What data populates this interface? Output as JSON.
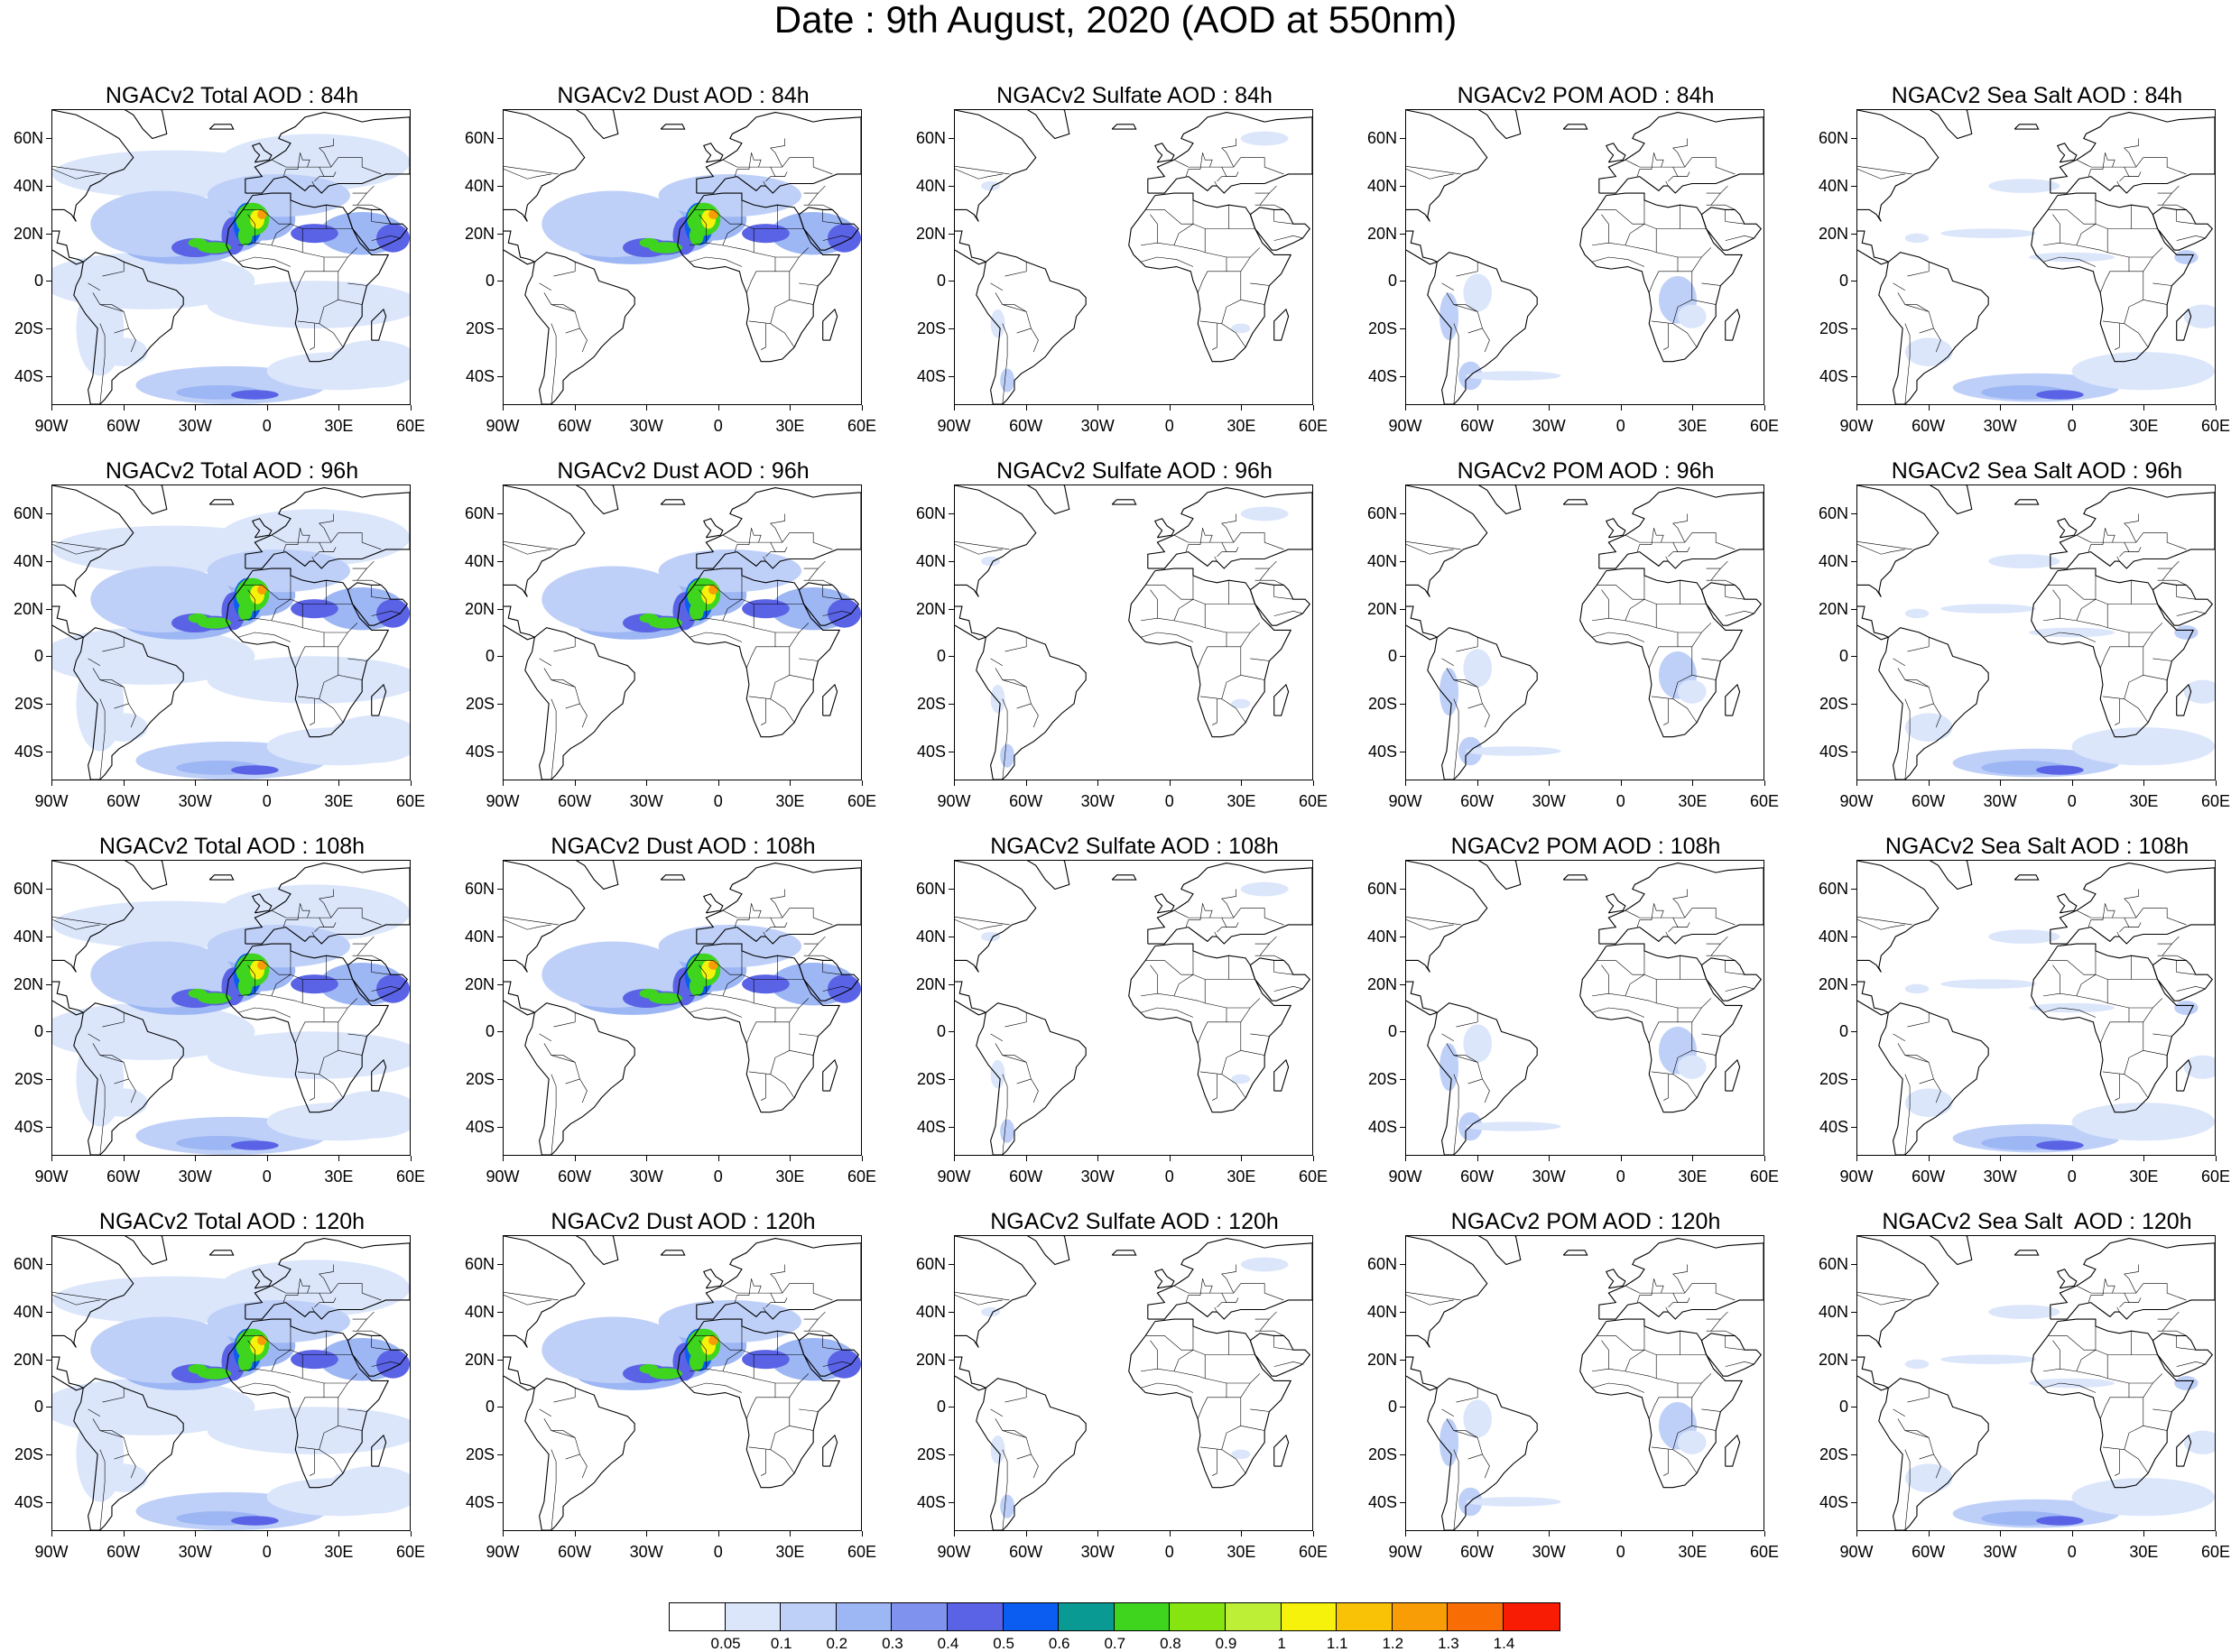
{
  "title": "Date : 9th August, 2020 (AOD at 550nm)",
  "colorbar": {
    "labels": [
      "0.05",
      "0.1",
      "0.2",
      "0.3",
      "0.4",
      "0.5",
      "0.6",
      "0.7",
      "0.8",
      "0.9",
      "1",
      "1.1",
      "1.2",
      "1.3",
      "1.4"
    ],
    "colors": [
      "#ffffff",
      "#dbe6fb",
      "#bfd0f8",
      "#9db6f4",
      "#7f93ee",
      "#5a63e5",
      "#0b5df2",
      "#0a9a94",
      "#3fd51f",
      "#86e411",
      "#bdef37",
      "#f6f20b",
      "#f9c207",
      "#f99d06",
      "#f86e05",
      "#f71c03"
    ]
  },
  "axes": {
    "lat_labels": [
      "60N",
      "40N",
      "20N",
      "0",
      "20S",
      "40S"
    ],
    "lon_labels": [
      "90W",
      "60W",
      "30W",
      "0",
      "30E",
      "60E"
    ]
  },
  "panels": [
    {
      "title": "NGACv2 Total AOD : 84h"
    },
    {
      "title": "NGACv2 Dust AOD : 84h"
    },
    {
      "title": "NGACv2 Sulfate AOD : 84h"
    },
    {
      "title": "NGACv2 POM AOD : 84h"
    },
    {
      "title": "NGACv2 Sea Salt AOD : 84h"
    },
    {
      "title": "NGACv2 Total AOD : 96h"
    },
    {
      "title": "NGACv2 Dust AOD : 96h"
    },
    {
      "title": "NGACv2 Sulfate AOD : 96h"
    },
    {
      "title": "NGACv2 POM AOD : 96h"
    },
    {
      "title": "NGACv2 Sea Salt AOD : 96h"
    },
    {
      "title": "NGACv2 Total AOD : 108h"
    },
    {
      "title": "NGACv2 Dust AOD : 108h"
    },
    {
      "title": "NGACv2 Sulfate AOD : 108h"
    },
    {
      "title": "NGACv2 POM AOD : 108h"
    },
    {
      "title": "NGACv2 Sea Salt AOD : 108h"
    },
    {
      "title": "NGACv2 Total AOD : 120h"
    },
    {
      "title": "NGACv2 Dust AOD : 120h"
    },
    {
      "title": "NGACv2 Sulfate AOD : 120h"
    },
    {
      "title": "NGACv2 POM AOD : 120h"
    },
    {
      "title": "NGACv2 Sea Salt  AOD : 120h"
    }
  ]
}
